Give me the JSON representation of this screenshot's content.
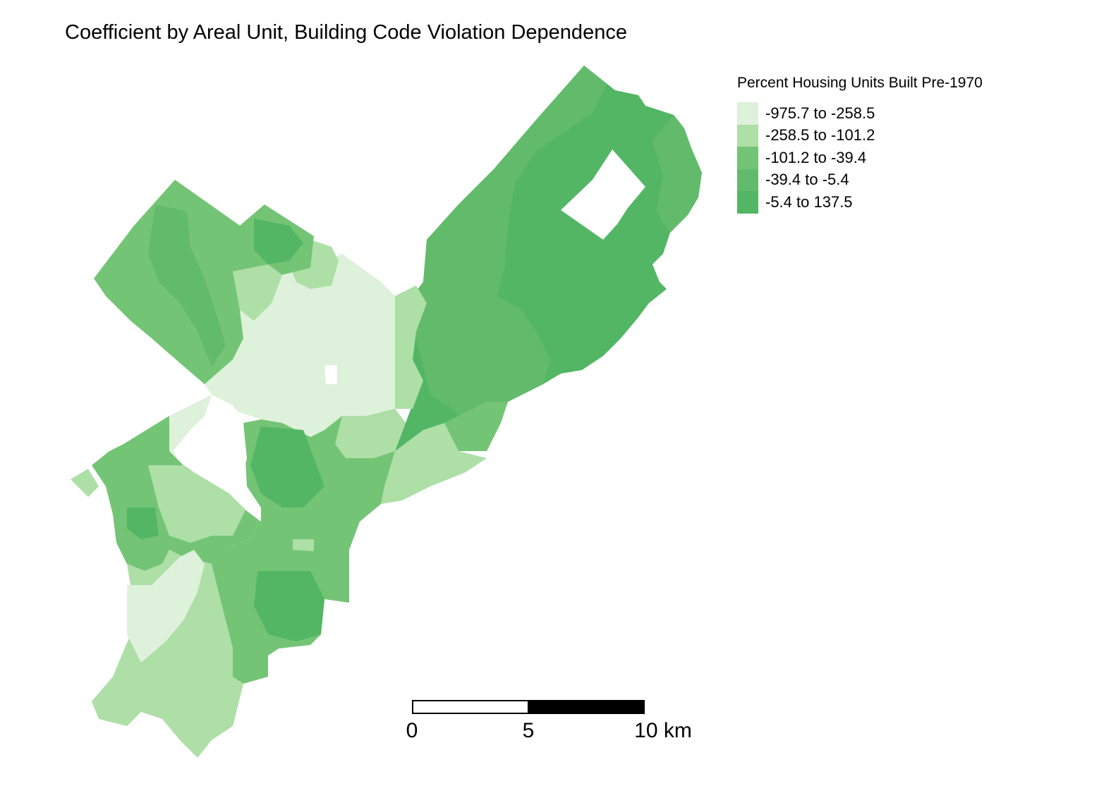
{
  "title": "Coefficient by Areal Unit, Building Code Violation Dependence",
  "legend": {
    "title": "Percent Housing Units Built Pre-1970",
    "classes": [
      {
        "label": "-975.7 to -258.5",
        "color": "#def1da"
      },
      {
        "label": "-258.5 to -101.2",
        "color": "#addfa7"
      },
      {
        "label": "-101.2 to -39.4",
        "color": "#74c476"
      },
      {
        "label": "-39.4 to -5.4",
        "color": "#62bb6b"
      },
      {
        "label": "-5.4 to 137.5",
        "color": "#52b665"
      }
    ]
  },
  "scale_bar": {
    "ticks": [
      "0",
      "5",
      "10 km"
    ]
  },
  "colors": {
    "lightest": "#def1da",
    "light": "#addfa7",
    "mid": "#74c476",
    "dark": "#62bb6b",
    "darkest": "#52b665",
    "background": "#ffffff"
  }
}
